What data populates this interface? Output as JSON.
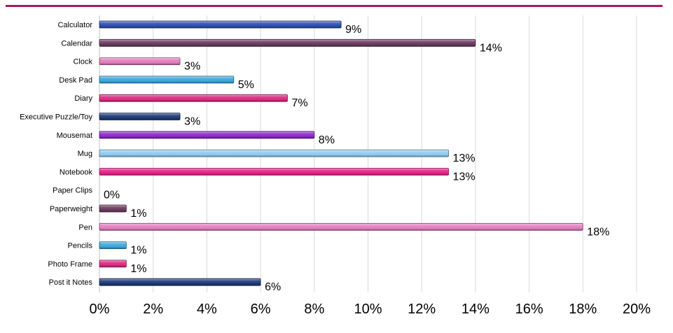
{
  "colors": {
    "accent_rule": "#b0165e",
    "axis": "#bfbfbf",
    "gridline": "#d9d9d9"
  },
  "chart_data": {
    "type": "bar",
    "orientation": "horizontal",
    "categories": [
      "Calculator",
      "Calendar",
      "Clock",
      "Desk Pad",
      "Diary",
      "Executive Puzzle/Toy",
      "Mousemat",
      "Mug",
      "Notebook",
      "Paper Clips",
      "Paperweight",
      "Pen",
      "Pencils",
      "Photo Frame",
      "Post it Notes"
    ],
    "values": [
      9,
      14,
      3,
      5,
      7,
      3,
      8,
      13,
      13,
      0,
      1,
      18,
      1,
      1,
      6
    ],
    "value_labels": [
      "9%",
      "14%",
      "3%",
      "5%",
      "7%",
      "3%",
      "8%",
      "13%",
      "13%",
      "0%",
      "1%",
      "18%",
      "1%",
      "1%",
      "6%"
    ],
    "bar_colors": [
      "#2d4fb0",
      "#6b3a5e",
      "#e07bbb",
      "#3aa6dd",
      "#dc2a82",
      "#1d3a78",
      "#8a2ac9",
      "#8fcbf0",
      "#e8208a",
      "#e8208a",
      "#6b3a5e",
      "#e27ec0",
      "#3aa6dd",
      "#dc2a82",
      "#1d3a78"
    ],
    "x_ticks": [
      "0%",
      "2%",
      "4%",
      "6%",
      "8%",
      "10%",
      "12%",
      "14%",
      "16%",
      "18%",
      "20%"
    ],
    "xlim": [
      0,
      20
    ],
    "grid": true,
    "title": "",
    "xlabel": "",
    "ylabel": ""
  }
}
